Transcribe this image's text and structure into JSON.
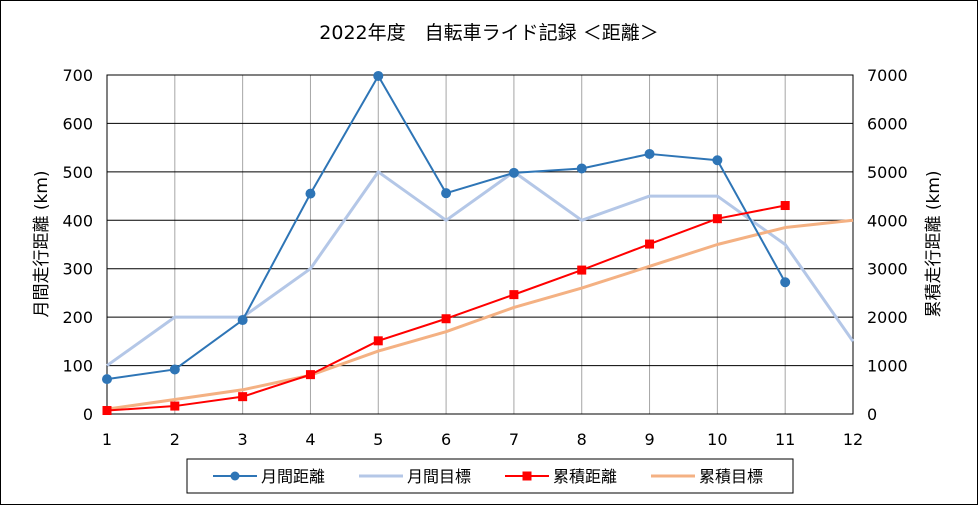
{
  "chart_data": {
    "type": "line",
    "title": "2022年度　自転車ライド記録 ＜距離＞",
    "ylabel": "月間走行距離 (km)",
    "y2label": "累積走行距離 (km)",
    "x": [
      1,
      2,
      3,
      4,
      5,
      6,
      7,
      8,
      9,
      10,
      11,
      12
    ],
    "ylim": [
      0,
      700
    ],
    "y2lim": [
      0,
      7000
    ],
    "yticks": [
      0,
      100,
      200,
      300,
      400,
      500,
      600,
      700
    ],
    "y2ticks": [
      0,
      1000,
      2000,
      3000,
      4000,
      5000,
      6000,
      7000
    ],
    "grid": true,
    "legend_position": "bottom",
    "series": [
      {
        "name": "月間距離",
        "axis": "left",
        "color": "#2e75b6",
        "marker": "circle",
        "values": [
          72,
          92,
          194,
          455,
          698,
          456,
          498,
          507,
          537,
          524,
          272,
          null
        ]
      },
      {
        "name": "月間目標",
        "axis": "left",
        "color": "#b4c7e7",
        "marker": "none",
        "values": [
          100,
          200,
          200,
          300,
          500,
          400,
          500,
          400,
          450,
          450,
          350,
          150
        ]
      },
      {
        "name": "累積距離",
        "axis": "right",
        "color": "#ff0000",
        "marker": "square",
        "values": [
          72,
          164,
          358,
          813,
          1511,
          1967,
          2465,
          2972,
          3509,
          4033,
          4305,
          null
        ]
      },
      {
        "name": "累積目標",
        "axis": "right",
        "color": "#f4b183",
        "marker": "none",
        "values": [
          100,
          300,
          500,
          800,
          1300,
          1700,
          2200,
          2600,
          3050,
          3500,
          3850,
          4000
        ]
      }
    ]
  }
}
